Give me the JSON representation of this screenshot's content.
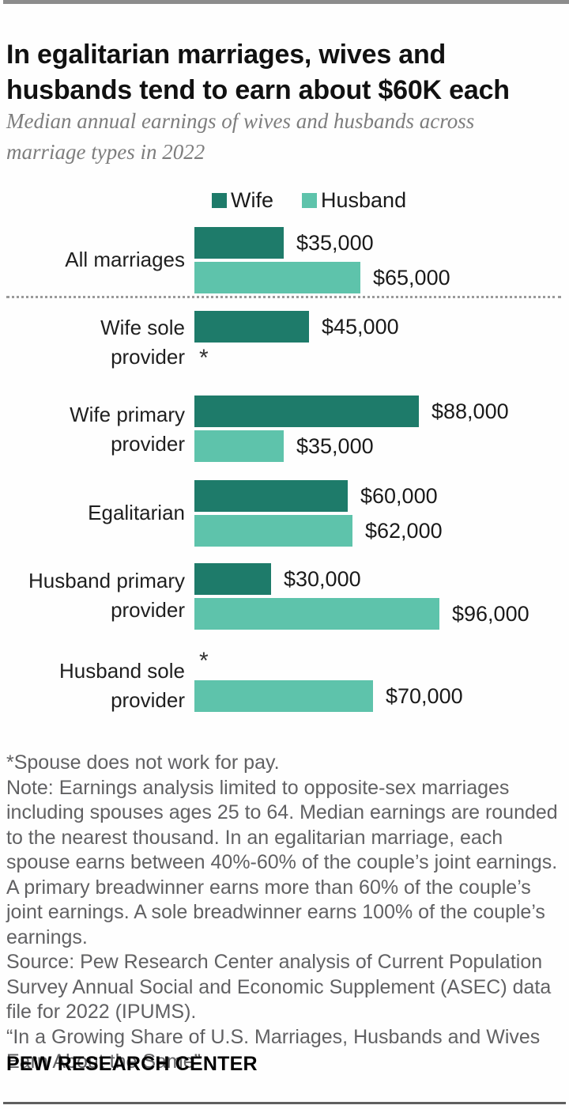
{
  "header": {
    "title": "In egalitarian marriages, wives and husbands tend to earn about $60K each",
    "subtitle": "Median annual earnings of wives and husbands across marriage types in 2022"
  },
  "chart_data": {
    "type": "bar",
    "orientation": "horizontal",
    "title": "Median annual earnings of wives and husbands across marriage types in 2022",
    "unit": "USD, median annual earnings",
    "x_axis": {
      "min": 0,
      "max": 100000,
      "gridlines": false,
      "axis_labels_shown": false
    },
    "legend": {
      "position": "top",
      "entries": [
        {
          "label": "Wife",
          "color": "#1e7b6a"
        },
        {
          "label": "Husband",
          "color": "#5ec3ab"
        }
      ]
    },
    "categories": [
      "All marriages",
      "Wife sole provider",
      "Wife primary provider",
      "Egalitarian",
      "Husband primary provider",
      "Husband sole provider"
    ],
    "series": [
      {
        "name": "Wife",
        "color": "#1e7b6a",
        "values": [
          35000,
          45000,
          88000,
          60000,
          30000,
          null
        ]
      },
      {
        "name": "Husband",
        "color": "#5ec3ab",
        "values": [
          65000,
          null,
          35000,
          62000,
          96000,
          70000
        ]
      }
    ],
    "null_marker": "*",
    "null_marker_meaning": "Spouse does not work for pay.",
    "rows": [
      {
        "label_line1": "All marriages",
        "label_line2": "",
        "wife_value": 35000,
        "wife_label": "$35,000",
        "husband_value": 65000,
        "husband_label": "$65,000"
      },
      {
        "label_line1": "Wife sole",
        "label_line2": "provider",
        "wife_value": 45000,
        "wife_label": "$45,000",
        "husband_marker": "*"
      },
      {
        "label_line1": "Wife primary",
        "label_line2": "provider",
        "wife_value": 88000,
        "wife_label": "$88,000",
        "husband_value": 35000,
        "husband_label": "$35,000"
      },
      {
        "label_line1": "Egalitarian",
        "label_line2": "",
        "wife_value": 60000,
        "wife_label": "$60,000",
        "husband_value": 62000,
        "husband_label": "$62,000"
      },
      {
        "label_line1": "Husband primary",
        "label_line2": "provider",
        "wife_value": 30000,
        "wife_label": "$30,000",
        "husband_value": 96000,
        "husband_label": "$96,000"
      },
      {
        "label_line1": "Husband sole",
        "label_line2": "provider",
        "wife_marker": "*",
        "husband_value": 70000,
        "husband_label": "$70,000"
      }
    ]
  },
  "notes": {
    "footnote": "*Spouse does not work for pay.",
    "note": "Note: Earnings analysis limited to opposite-sex marriages including spouses ages 25 to 64. Median earnings are rounded to the nearest thousand. In an egalitarian marriage, each spouse earns between 40%-60% of the couple’s joint earnings. A primary breadwinner earns more than 60% of the couple’s joint earnings. A sole breadwinner earns 100% of the couple’s earnings.",
    "source": "Source: Pew Research Center analysis of Current Population Survey Annual Social and Economic Supplement (ASEC) data file for 2022 (IPUMS).",
    "citation": "“In a Growing Share of U.S. Marriages, Husbands and Wives Earn About the Same”"
  },
  "footer": {
    "brand": "PEW RESEARCH CENTER"
  },
  "colors": {
    "wife_bar": "#1e7b6a",
    "husband_bar": "#5ec3ab",
    "title_text": "#111111",
    "subtitle_text": "#7d7d7d",
    "notes_text": "#616163",
    "dotted_divider": "#9a9a9a",
    "top_rule": "#8c8c8c",
    "bottom_rule": "#5f5f5f"
  }
}
